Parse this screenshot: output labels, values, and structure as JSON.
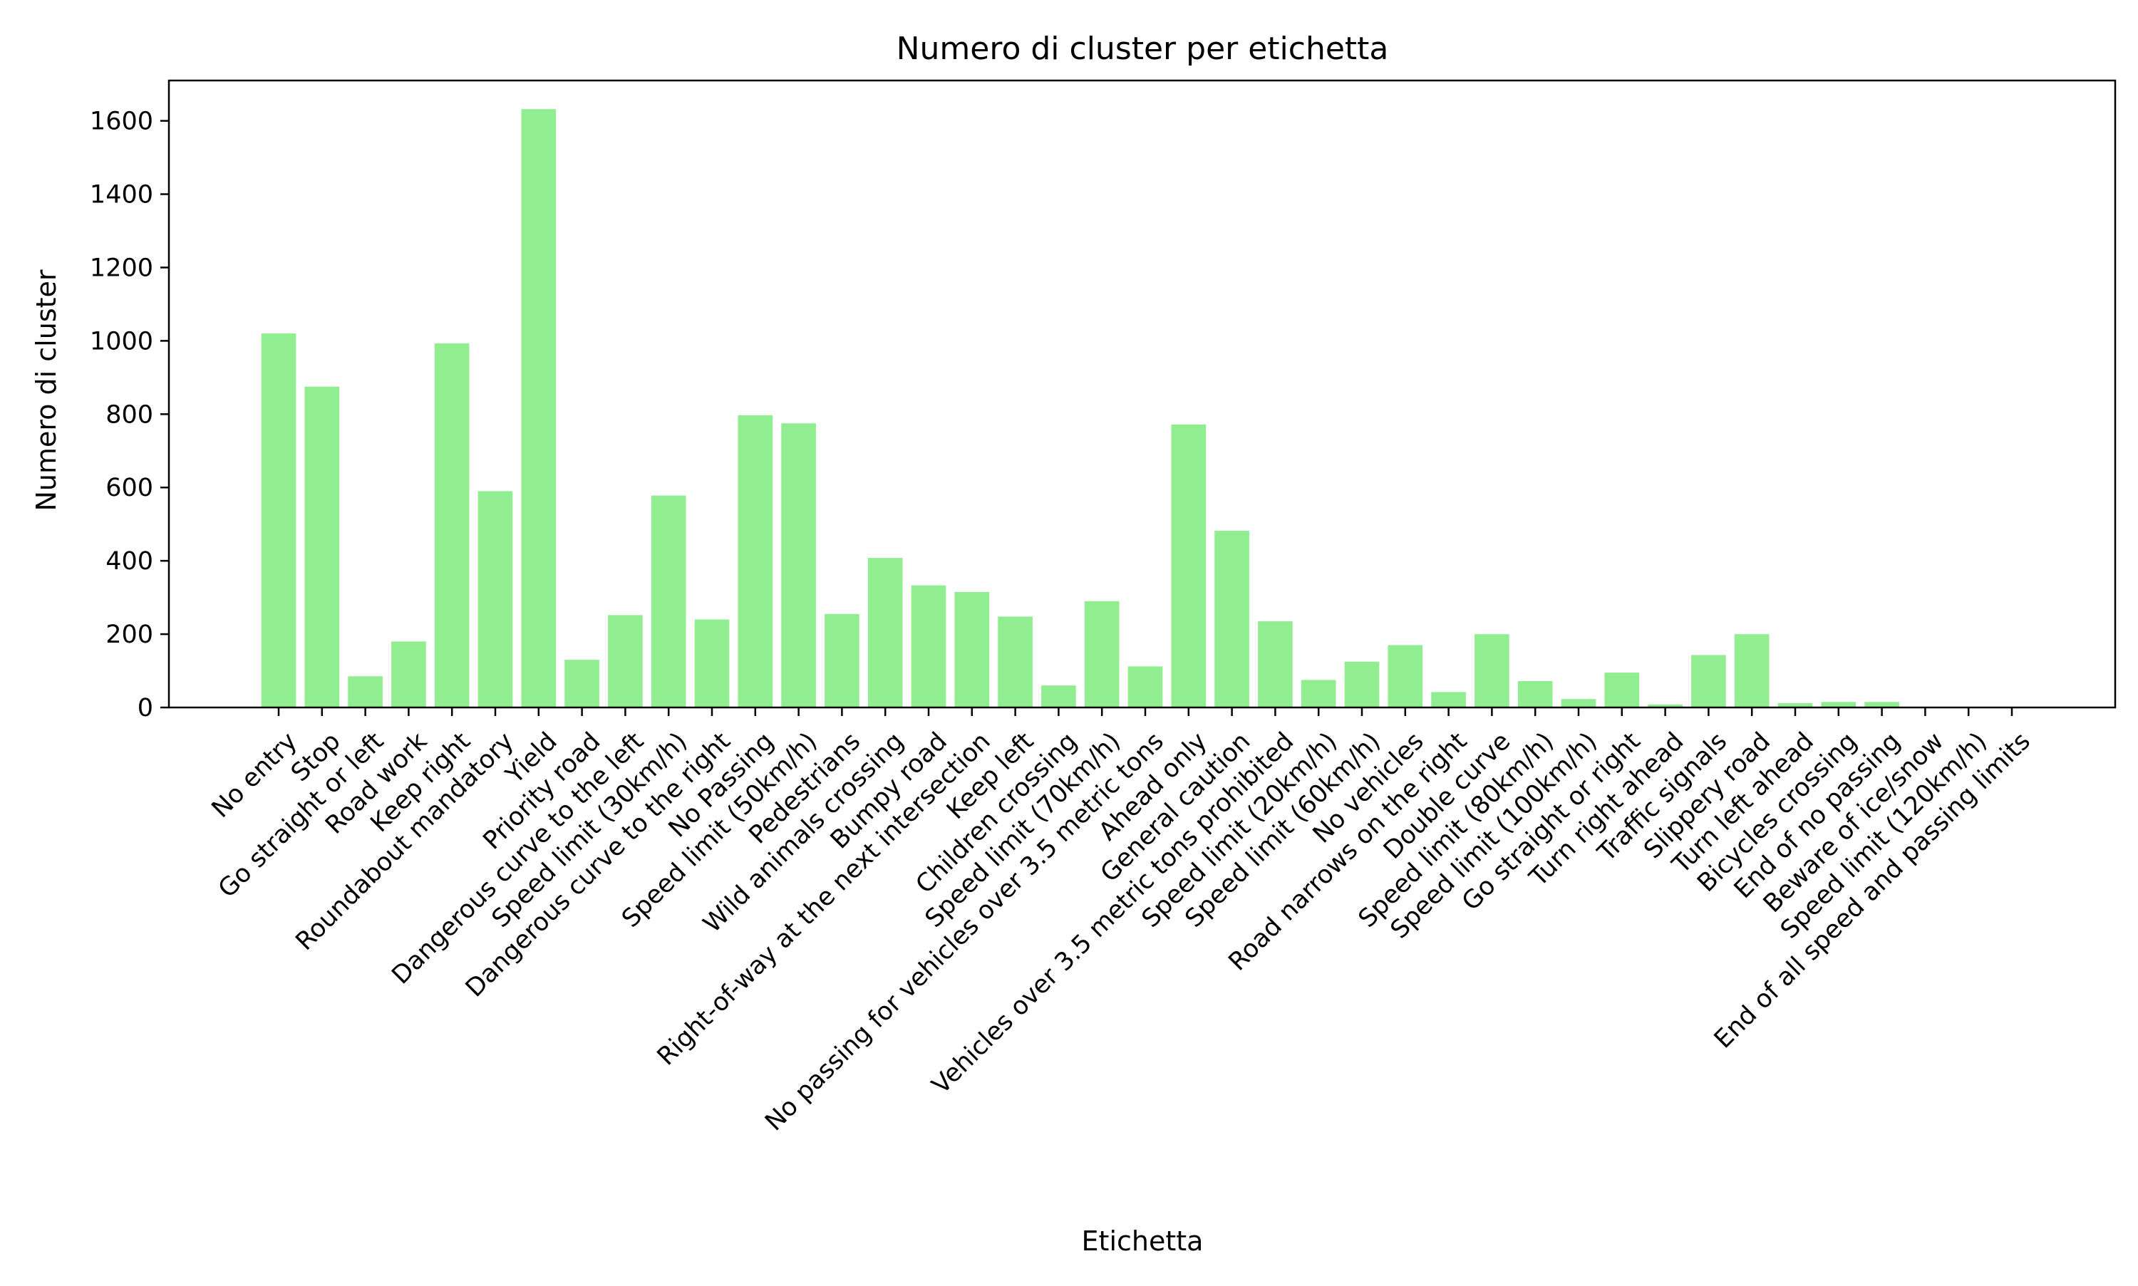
{
  "chart_data": {
    "type": "bar",
    "title": "Numero di cluster per etichetta",
    "xlabel": "Etichetta",
    "ylabel": "Numero di cluster",
    "ylim": [
      0,
      1710
    ],
    "yticks": [
      0,
      200,
      400,
      600,
      800,
      1000,
      1200,
      1400,
      1600
    ],
    "grid": false,
    "legend": "none",
    "bar_color": "#90ee90",
    "categories": [
      "No entry",
      "Stop",
      "Go straight or left",
      "Road work",
      "Keep right",
      "Roundabout mandatory",
      "Yield",
      "Priority road",
      "Dangerous curve to the left",
      "Speed limit (30km/h)",
      "Dangerous curve to the right",
      "No Passing",
      "Speed limit (50km/h)",
      "Pedestrians",
      "Wild animals crossing",
      "Bumpy road",
      "Right-of-way at the next intersection",
      "Keep left",
      "Children crossing",
      "Speed limit (70km/h)",
      "No passing for vehicles over 3.5 metric tons",
      "Ahead only",
      "General caution",
      "Vehicles over 3.5 metric tons prohibited",
      "Speed limit (20km/h)",
      "Speed limit (60km/h)",
      "No vehicles",
      "Road narrows on the right",
      "Double curve",
      "Speed limit (80km/h)",
      "Speed limit (100km/h)",
      "Go straight or right",
      "Turn right ahead",
      "Traffic signals",
      "Slippery road",
      "Turn left ahead",
      "Bicycles crossing",
      "End of no passing",
      "Beware of ice/snow",
      "Speed limit (120km/h)",
      "End of all speed and passing limits"
    ],
    "values": [
      1020,
      875,
      85,
      180,
      993,
      590,
      1632,
      130,
      252,
      578,
      240,
      797,
      775,
      255,
      408,
      333,
      315,
      248,
      60,
      290,
      112,
      772,
      482,
      235,
      75,
      125,
      170,
      42,
      200,
      72,
      23,
      95,
      8,
      143,
      200,
      12,
      15,
      15,
      1,
      1,
      1
    ]
  }
}
